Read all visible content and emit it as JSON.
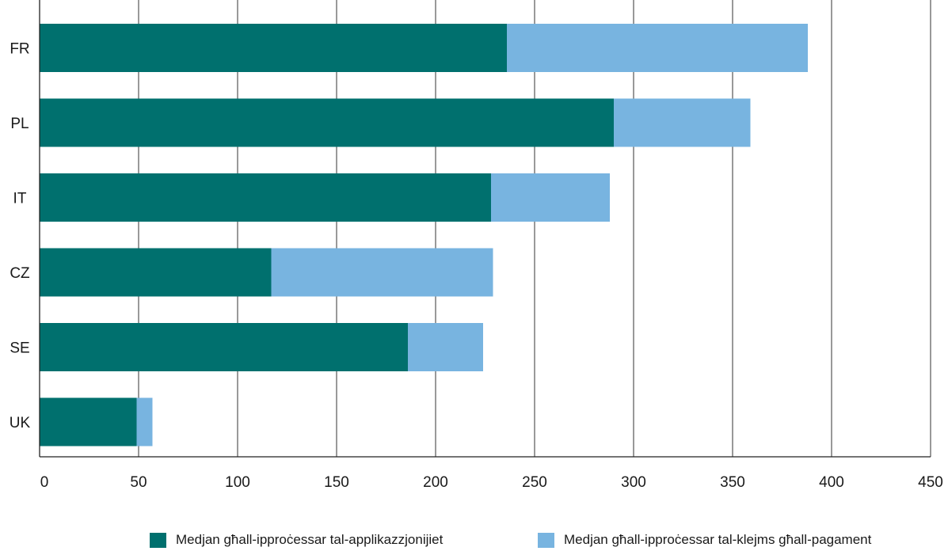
{
  "chart_data": {
    "type": "bar",
    "orientation": "horizontal",
    "stacked": true,
    "categories": [
      "FR",
      "PL",
      "IT",
      "CZ",
      "SE",
      "UK"
    ],
    "series": [
      {
        "name": "Medjan għall-ipproċessar tal-applikazzjonijiet",
        "color": "#00706e",
        "values": [
          236,
          290,
          228,
          117,
          186,
          49
        ]
      },
      {
        "name": "Medjan għall-ipproċessar tal-klejms għall-pagament",
        "color": "#78b4e0",
        "values": [
          152,
          69,
          60,
          112,
          38,
          8
        ]
      }
    ],
    "x_ticks": [
      "0",
      "50",
      "100",
      "150",
      "200",
      "250",
      "300",
      "350",
      "400",
      "450"
    ],
    "xlim": [
      0,
      450
    ],
    "grid": "vertical",
    "legend_position": "bottom",
    "title": "",
    "xlabel": "",
    "ylabel": ""
  }
}
